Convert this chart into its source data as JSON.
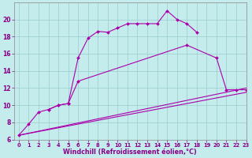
{
  "xlabel": "Windchill (Refroidissement éolien,°C)",
  "background_color": "#c5eced",
  "line_color": "#aa00aa",
  "grid_color": "#99cccc",
  "series": [
    {
      "x": [
        0,
        1,
        2,
        3,
        4,
        5,
        6,
        7,
        8,
        9,
        10,
        11,
        12,
        13,
        14,
        15,
        16,
        17,
        18
      ],
      "y": [
        6.5,
        7.8,
        9.2,
        9.5,
        10.0,
        10.2,
        15.5,
        17.8,
        18.6,
        18.5,
        19.0,
        19.5,
        19.5,
        19.5,
        19.5,
        21.0,
        20.0,
        19.5,
        18.5
      ],
      "marker": true
    },
    {
      "x": [
        3,
        4,
        5,
        6,
        17,
        20,
        21,
        22,
        23
      ],
      "y": [
        9.5,
        10.0,
        10.2,
        12.8,
        17.0,
        15.5,
        11.8,
        11.8,
        11.8
      ],
      "marker": true
    },
    {
      "x": [
        0,
        23
      ],
      "y": [
        6.5,
        12.0
      ],
      "marker": false
    },
    {
      "x": [
        0,
        23
      ],
      "y": [
        6.5,
        11.5
      ],
      "marker": false
    }
  ],
  "xlim": [
    -0.5,
    23
  ],
  "ylim": [
    6,
    22
  ],
  "xticks": [
    0,
    1,
    2,
    3,
    4,
    5,
    6,
    7,
    8,
    9,
    10,
    11,
    12,
    13,
    14,
    15,
    16,
    17,
    18,
    19,
    20,
    21,
    22,
    23
  ],
  "yticks": [
    6,
    8,
    10,
    12,
    14,
    16,
    18,
    20
  ],
  "xtick_fontsize": 4.8,
  "ytick_fontsize": 5.5,
  "xlabel_fontsize": 5.8
}
